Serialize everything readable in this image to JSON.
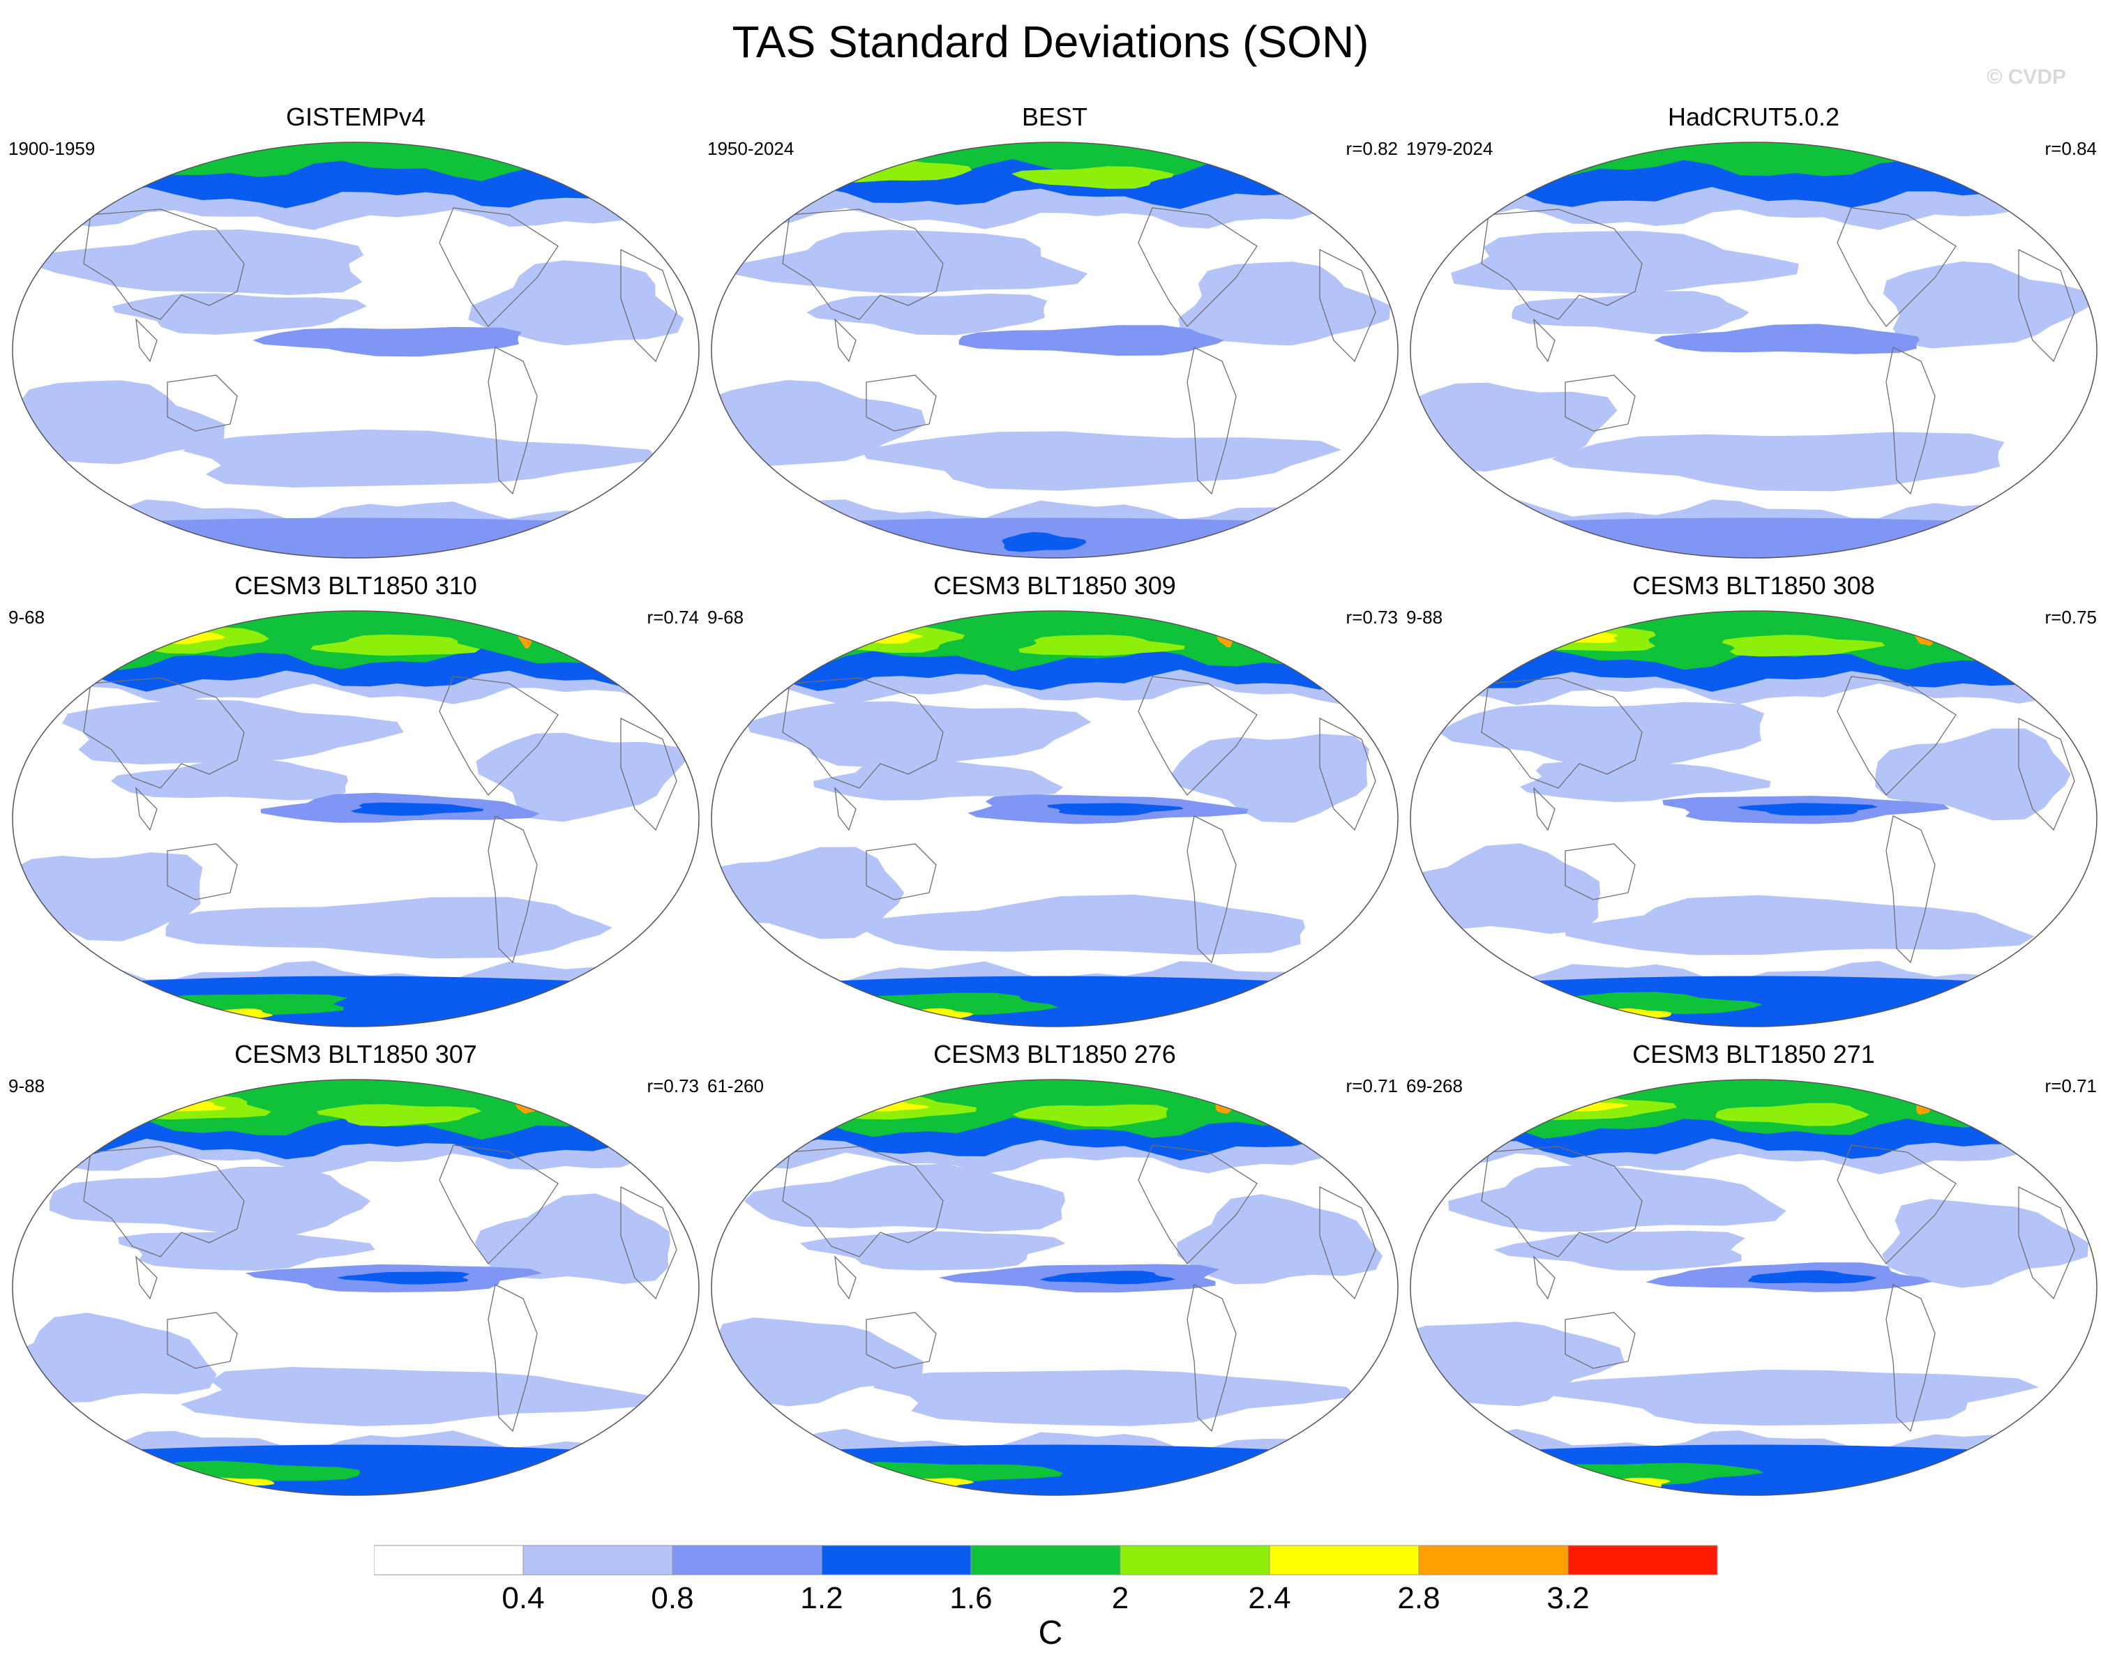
{
  "title": "TAS Standard Deviations (SON)",
  "watermark": "© CVDP",
  "chart_data": {
    "type": "heatmap",
    "variable": "TAS",
    "season": "SON",
    "projection": "Robinson (Pacific-centered)",
    "units": "C",
    "levels": [
      0.4,
      0.8,
      1.2,
      1.6,
      2,
      2.4,
      2.8,
      3.2
    ],
    "colorbar_labels": [
      "0.4",
      "0.8",
      "1.2",
      "1.6",
      "2",
      "2.4",
      "2.8",
      "3.2"
    ],
    "colors": [
      "#ffffff",
      "#b4c3f8",
      "#7f96f5",
      "#0a5cf0",
      "#10c23a",
      "#8ef00a",
      "#ffff00",
      "#ffa000",
      "#ff1a00"
    ],
    "panels": [
      {
        "name": "GISTEMPv4",
        "years": "1900-1959",
        "r": ""
      },
      {
        "name": "BEST",
        "years": "1950-2024",
        "r": "r=0.82"
      },
      {
        "name": "HadCRUT5.0.2",
        "years": "1979-2024",
        "r": "r=0.84"
      },
      {
        "name": "CESM3 BLT1850 310",
        "years": "9-68",
        "r": "r=0.74"
      },
      {
        "name": "CESM3 BLT1850 309",
        "years": "9-68",
        "r": "r=0.73"
      },
      {
        "name": "CESM3 BLT1850 308",
        "years": "9-88",
        "r": "r=0.75"
      },
      {
        "name": "CESM3 BLT1850 307",
        "years": "9-88",
        "r": "r=0.73"
      },
      {
        "name": "CESM3 BLT1850 276",
        "years": "61-260",
        "r": "r=0.71"
      },
      {
        "name": "CESM3 BLT1850 271",
        "years": "69-268",
        "r": "r=0.71"
      }
    ]
  },
  "colorbar": {
    "unit_label": "C"
  }
}
